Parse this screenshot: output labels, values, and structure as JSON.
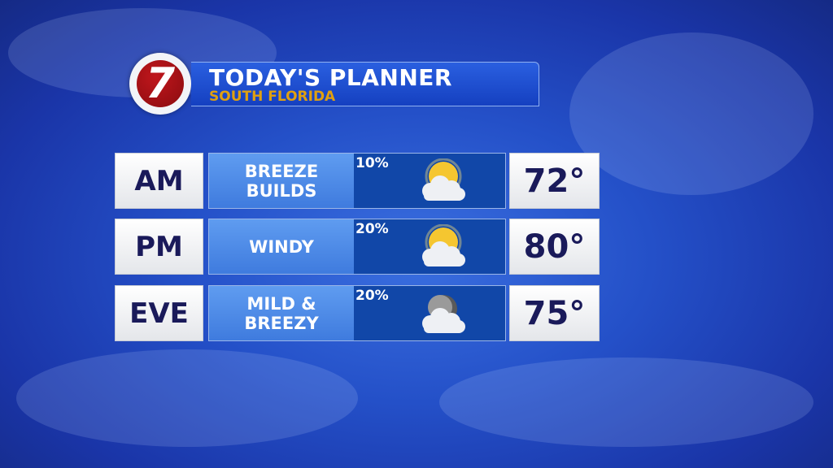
{
  "header": {
    "logo_text": "7",
    "title": "TODAY'S PLANNER",
    "subtitle": "SOUTH FLORIDA"
  },
  "rows": [
    {
      "period": "AM",
      "description_line1": "BREEZE",
      "description_line2": "BUILDS",
      "precip_chance": "10%",
      "icon": "partly-sunny-icon",
      "temperature": "72°"
    },
    {
      "period": "PM",
      "description_line1": "WINDY",
      "description_line2": "",
      "precip_chance": "20%",
      "icon": "partly-sunny-icon",
      "temperature": "80°"
    },
    {
      "period": "EVE",
      "description_line1": "MILD &",
      "description_line2": "BREEZY",
      "precip_chance": "20%",
      "icon": "partly-cloudy-night-icon",
      "temperature": "75°"
    }
  ],
  "colors": {
    "title_bar": "#1e50d0",
    "subtitle": "#e0a010",
    "logo_red": "#b01418",
    "text_dark": "#1a1a5a"
  }
}
